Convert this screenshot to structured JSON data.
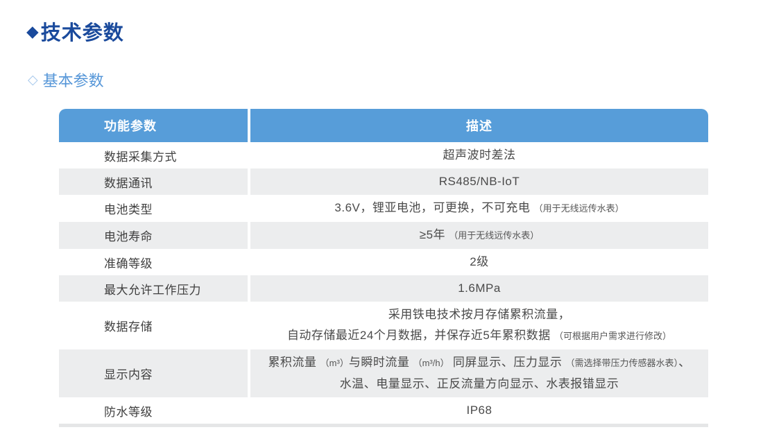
{
  "page": {
    "title_bullet": "◆",
    "title": "技术参数",
    "subtitle_bullet": "◇",
    "subtitle": "基本参数"
  },
  "table": {
    "headers": {
      "param": "功能参数",
      "desc": "描述"
    },
    "rows": [
      {
        "label": "数据采集方式",
        "desc": [
          [
            "超声波时差法",
            "n"
          ]
        ]
      },
      {
        "label": "数据通讯",
        "desc": [
          [
            "RS485/NB-IoT",
            "n"
          ]
        ]
      },
      {
        "label": "电池类型",
        "desc": [
          [
            "3.6V，锂亚电池，可更换，不可充电 ",
            "n"
          ],
          [
            "（用于无线远传水表）",
            "s"
          ]
        ]
      },
      {
        "label": "电池寿命",
        "desc": [
          [
            "≥5年 ",
            "n"
          ],
          [
            "（用于无线远传水表）",
            "s"
          ]
        ]
      },
      {
        "label": "准确等级",
        "desc": [
          [
            "2级",
            "n"
          ]
        ]
      },
      {
        "label": "最大允许工作压力",
        "desc": [
          [
            "1.6MPa",
            "n"
          ]
        ]
      },
      {
        "label": "数据存储",
        "desc": [
          [
            "采用铁电技术按月存储累积流量，",
            "n"
          ],
          [
            "",
            "br"
          ],
          [
            "自动存储最近24个月数据，并保存近5年累积数据 ",
            "n"
          ],
          [
            "（可根据用户需求进行修改）",
            "s"
          ]
        ]
      },
      {
        "label": "显示内容",
        "desc": [
          [
            "累积流量 ",
            "n"
          ],
          [
            "（m³）",
            "s"
          ],
          [
            "与瞬时流量 ",
            "n"
          ],
          [
            "（m³/h）",
            "s"
          ],
          [
            " 同屏显示、压力显示 ",
            "n"
          ],
          [
            "（需选择带压力传感器水表）",
            "s"
          ],
          [
            "、",
            "n"
          ],
          [
            "",
            "br"
          ],
          [
            "水温、电量显示、正反流量方向显示、水表报错显示",
            "n"
          ]
        ]
      },
      {
        "label": "防水等级",
        "desc": [
          [
            "IP68",
            "n"
          ]
        ]
      }
    ]
  },
  "colors": {
    "header_blue": "#579DD9",
    "row_gray": "#ECEDEE",
    "title_navy": "#1A4A9C",
    "subtitle_blue": "#5596D8",
    "subtitle_diamond": "#A9CAEC",
    "label_color": "#3F3F3F",
    "value_color": "#4A4A4A",
    "bottom_bar": "#E5E6E7"
  }
}
